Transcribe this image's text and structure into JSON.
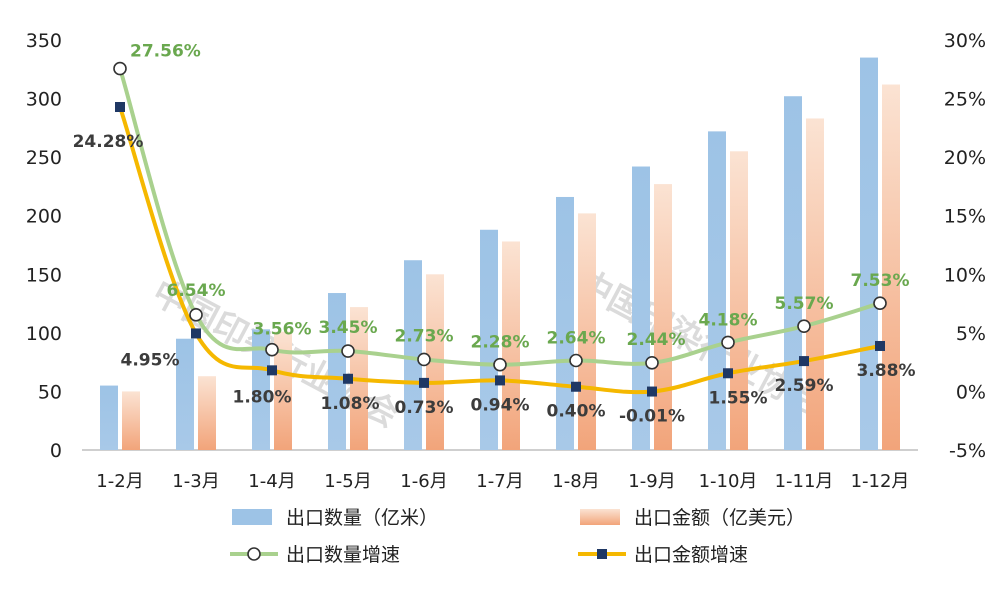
{
  "chart_data": {
    "type": "bar",
    "categories": [
      "1-2月",
      "1-3月",
      "1-4月",
      "1-5月",
      "1-6月",
      "1-7月",
      "1-8月",
      "1-9月",
      "1-10月",
      "1-11月",
      "1-12月"
    ],
    "y_left": {
      "ylim": [
        0,
        350
      ],
      "ticks": [
        "0",
        "50",
        "100",
        "150",
        "200",
        "250",
        "300",
        "350"
      ]
    },
    "y_right": {
      "ylim": [
        -5,
        30
      ],
      "ticks": [
        "-5%",
        "0%",
        "5%",
        "10%",
        "15%",
        "20%",
        "25%",
        "30%"
      ]
    },
    "series": [
      {
        "name": "出口数量（亿米）",
        "kind": "bar",
        "axis": "left",
        "color": "#9dc3e6",
        "values": [
          55,
          95,
          103,
          134,
          162,
          188,
          216,
          242,
          272,
          302,
          335
        ]
      },
      {
        "name": "出口金额（亿美元）",
        "kind": "bar",
        "axis": "left",
        "color": "#f4b183",
        "values": [
          50,
          63,
          101,
          122,
          150,
          178,
          202,
          227,
          255,
          283,
          312
        ]
      },
      {
        "name": "出口数量增速",
        "kind": "line",
        "axis": "right",
        "color": "#a9d18e",
        "marker": "circle",
        "values": [
          27.56,
          6.54,
          3.56,
          3.45,
          2.73,
          2.28,
          2.64,
          2.44,
          4.18,
          5.57,
          7.53
        ],
        "labels": [
          "27.56%",
          "6.54%",
          "3.56%",
          "3.45%",
          "2.73%",
          "2.28%",
          "2.64%",
          "2.44%",
          "4.18%",
          "5.57%",
          "7.53%"
        ]
      },
      {
        "name": "出口金额增速",
        "kind": "line",
        "axis": "right",
        "color": "#f5b800",
        "marker": "square",
        "values": [
          24.28,
          4.95,
          1.8,
          1.08,
          0.73,
          0.94,
          0.4,
          -0.01,
          1.55,
          2.59,
          3.88
        ],
        "labels": [
          "24.28%",
          "4.95%",
          "1.80%",
          "1.08%",
          "0.73%",
          "0.94%",
          "0.40%",
          "-0.01%",
          "1.55%",
          "2.59%",
          "3.88%"
        ]
      }
    ],
    "legend": "bottom",
    "grid": false
  },
  "watermarks": [
    "中国印染行业协会",
    "中国印染行业协会"
  ]
}
